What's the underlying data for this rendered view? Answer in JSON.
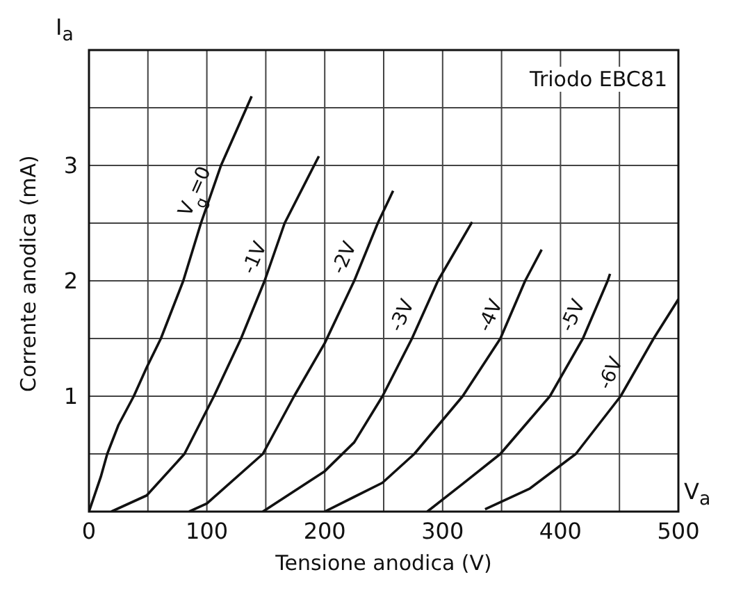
{
  "chart_data": {
    "type": "line",
    "title": "Triodo EBC81",
    "xlabel": "Tensione anodica (V)",
    "ylabel": "Corrente anodica (mA)",
    "annotations": [
      "I$_{a}$",
      "V$_{a}$"
    ],
    "series": [
      {
        "name": "V$_{g}$=0",
        "color": "#111111",
        "x": [
          0,
          10,
          15.5,
          25,
          38,
          49,
          61,
          80,
          95,
          112,
          138
        ],
        "values": [
          0,
          0.3,
          0.5,
          0.75,
          1.0,
          1.25,
          1.5,
          2.0,
          2.5,
          3.0,
          3.6
        ]
      },
      {
        "name": "-1V",
        "color": "#111111",
        "x": [
          19,
          49,
          81,
          106,
          129,
          149,
          166,
          195
        ],
        "values": [
          0,
          0.14,
          0.5,
          1.0,
          1.5,
          2.0,
          2.5,
          3.08
        ]
      },
      {
        "name": "-2V",
        "color": "#111111",
        "x": [
          85,
          100,
          147.5,
          174,
          200,
          225,
          245,
          258
        ],
        "values": [
          0,
          0.07,
          0.5,
          1.0,
          1.46,
          2.0,
          2.5,
          2.78
        ]
      },
      {
        "name": "-3V",
        "color": "#111111",
        "x": [
          147.5,
          200,
          225,
          249,
          274,
          296,
          325
        ],
        "values": [
          0,
          0.35,
          0.6,
          1.0,
          1.5,
          2.0,
          2.51
        ]
      },
      {
        "name": "-4V",
        "color": "#111111",
        "x": [
          200,
          249,
          276,
          317,
          349,
          370,
          384
        ],
        "values": [
          0,
          0.25,
          0.5,
          1.0,
          1.5,
          2.0,
          2.27
        ]
      },
      {
        "name": "-5V",
        "color": "#111111",
        "x": [
          287,
          317,
          349,
          391,
          419,
          440,
          442
        ],
        "values": [
          0,
          0.24,
          0.5,
          1.0,
          1.5,
          2.0,
          2.06
        ]
      },
      {
        "name": "-6V",
        "color": "#111111",
        "x": [
          336,
          374,
          413,
          451,
          479,
          500
        ],
        "values": [
          0.02,
          0.2,
          0.5,
          1.0,
          1.5,
          1.84
        ]
      }
    ],
    "xlim": [
      0,
      500
    ],
    "ylim": [
      0,
      4
    ],
    "xticks": [
      0,
      {
        "value": 50,
        "label": null
      },
      100,
      {
        "value": 150,
        "label": null
      },
      200,
      {
        "value": 250,
        "label": null
      },
      300,
      {
        "value": 350,
        "label": null
      },
      400,
      {
        "value": 450,
        "label": null
      },
      500
    ],
    "yticks": [
      {
        "value": 0,
        "label": null
      },
      {
        "value": 0.5,
        "label": null
      },
      1,
      {
        "value": 1.5,
        "label": null
      },
      2,
      {
        "value": 2.5,
        "label": null
      },
      3,
      {
        "value": 3.5,
        "label": null
      },
      {
        "value": 4,
        "label": null
      }
    ],
    "grid": true,
    "legend": false,
    "marker": "none",
    "line_style": "solid"
  }
}
